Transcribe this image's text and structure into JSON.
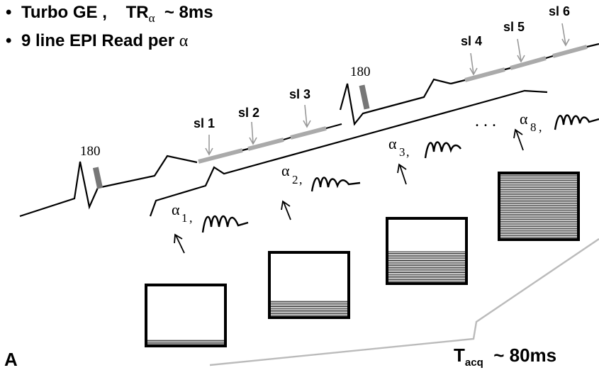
{
  "header": {
    "bullet_char": "•",
    "line1_a": "Turbo GE ,",
    "line1_tr": "TR",
    "line1_alpha": "α",
    "line1_b": "~ 8ms",
    "line2_a": "9 line EPI Read per",
    "line2_alpha": "α"
  },
  "pulses": {
    "label_180": "180"
  },
  "slices": [
    "sl 1",
    "sl 2",
    "sl 3",
    "sl 4",
    "sl 5",
    "sl 6"
  ],
  "alphas": {
    "symbol": "α",
    "subs": [
      "1",
      "2",
      "3",
      "8"
    ],
    "comma": ",",
    "dots": ". . ."
  },
  "kspace": {
    "filled_lines": [
      3,
      9,
      18,
      36
    ],
    "total_lines": 36
  },
  "footer": {
    "panel_label": "A",
    "tacq_t": "T",
    "tacq_sub": "acq",
    "tacq_value": "~ 80ms"
  }
}
